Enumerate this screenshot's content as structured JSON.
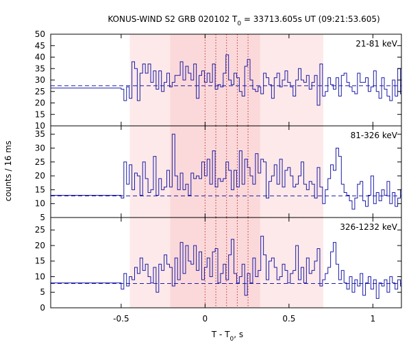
{
  "chart_data": {
    "type": "line",
    "title": "KONUS-WIND S2 GRB 020102 T",
    "title_sub": "0",
    "title_rest": " = 33713.605s UT (09:21:53.605)",
    "xlabel": "T - T",
    "xlabel_sub": "0",
    "xlabel_rest": ", s",
    "ylabel": "counts / 16 ms",
    "xlim": [
      -0.92,
      1.17
    ],
    "xticks": [
      -0.5,
      0,
      0.5,
      1
    ],
    "xtick_labels": [
      "-0.5",
      "0",
      "0.5",
      "1"
    ],
    "bin_width": 0.016,
    "colors": {
      "curve": "#1a1aa8",
      "light_band": "#fde9e9",
      "dark_band": "#fbd9da",
      "marker_lines": "#c03030"
    },
    "shaded_intervals": [
      {
        "range": [
          -0.448,
          0.704
        ],
        "shade": "light"
      },
      {
        "range": [
          -0.208,
          0.328
        ],
        "shade": "dark"
      }
    ],
    "marker_lines": [
      0.0,
      0.064,
      0.128,
      0.192,
      0.256
    ],
    "panels": [
      {
        "band_label": "21-81 keV",
        "ylim": [
          10,
          50
        ],
        "yticks": [
          10,
          15,
          20,
          25,
          30,
          35,
          40,
          45,
          50
        ],
        "background": 27.5,
        "pre_trigger_level": 26.5,
        "values": [
          26,
          21,
          27,
          22,
          38,
          35,
          21,
          33,
          37,
          33,
          37,
          29,
          34,
          26,
          34,
          25,
          29,
          33,
          27,
          29,
          32,
          32,
          38,
          30,
          36,
          33,
          30,
          37,
          22,
          32,
          34,
          29,
          33,
          29,
          37,
          26,
          28,
          27,
          33,
          41,
          30,
          28,
          33,
          31,
          25,
          23,
          36,
          39,
          30,
          26,
          25,
          27,
          24,
          33,
          31,
          28,
          22,
          31,
          33,
          27,
          30,
          34,
          29,
          27,
          23,
          30,
          35,
          30,
          29,
          32,
          26,
          29,
          32,
          19,
          37,
          23,
          25,
          31,
          28,
          26,
          31,
          23,
          32,
          33,
          29,
          27,
          25,
          24,
          33,
          29,
          29,
          31,
          25,
          27,
          34,
          25,
          22,
          31,
          26,
          23,
          21,
          30,
          23,
          35,
          24,
          25,
          28,
          22,
          29,
          25,
          32,
          30,
          26,
          28,
          26,
          28,
          30
        ]
      },
      {
        "band_label": "81-326 keV",
        "ylim": [
          5,
          38
        ],
        "yticks": [
          5,
          10,
          15,
          20,
          25,
          30,
          35
        ],
        "background": 12.8,
        "pre_trigger_level": 13,
        "values": [
          12,
          25,
          17,
          24,
          15,
          21,
          20,
          13,
          25,
          19,
          14,
          15,
          27,
          13,
          19,
          15,
          16,
          22,
          16,
          35,
          20,
          15,
          21,
          15,
          17,
          13,
          21,
          19,
          20,
          19,
          25,
          20,
          26,
          17,
          29,
          16,
          19,
          18,
          19,
          25,
          22,
          15,
          22,
          16,
          29,
          17,
          26,
          23,
          20,
          17,
          28,
          21,
          26,
          25,
          12,
          18,
          20,
          24,
          17,
          26,
          16,
          22,
          23,
          20,
          16,
          17,
          20,
          25,
          17,
          15,
          18,
          17,
          12,
          23,
          16,
          10,
          15,
          19,
          24,
          22,
          30,
          27,
          17,
          14,
          13,
          11,
          8,
          12,
          17,
          18,
          11,
          9,
          13,
          20,
          10,
          14,
          11,
          15,
          13,
          18,
          10,
          14,
          9,
          12,
          15,
          16,
          10,
          11,
          9,
          14,
          10,
          13,
          15,
          11,
          16,
          12,
          14
        ]
      },
      {
        "band_label": "326-1232 keV",
        "ylim": [
          0,
          29
        ],
        "yticks": [
          0,
          5,
          10,
          15,
          20,
          25
        ],
        "background": 7.8,
        "pre_trigger_level": 8,
        "values": [
          6,
          11,
          7,
          10,
          9,
          13,
          11,
          16,
          12,
          14,
          10,
          8,
          13,
          5,
          14,
          12,
          17,
          14,
          13,
          7,
          16,
          9,
          21,
          11,
          20,
          15,
          14,
          20,
          12,
          18,
          9,
          13,
          16,
          10,
          18,
          19,
          8,
          11,
          14,
          9,
          17,
          22,
          11,
          8,
          10,
          14,
          4,
          11,
          8,
          16,
          10,
          12,
          23,
          17,
          9,
          15,
          16,
          13,
          9,
          10,
          14,
          12,
          8,
          11,
          12,
          20,
          9,
          13,
          8,
          16,
          11,
          12,
          15,
          19,
          7,
          9,
          11,
          13,
          18,
          21,
          14,
          9,
          12,
          8,
          6,
          10,
          5,
          9,
          7,
          11,
          4,
          8,
          10,
          6,
          9,
          3,
          8,
          7,
          9,
          5,
          10,
          8,
          6,
          9,
          7,
          11,
          5,
          8,
          6,
          10,
          7,
          9,
          8,
          6,
          10,
          7,
          8
        ]
      }
    ]
  }
}
